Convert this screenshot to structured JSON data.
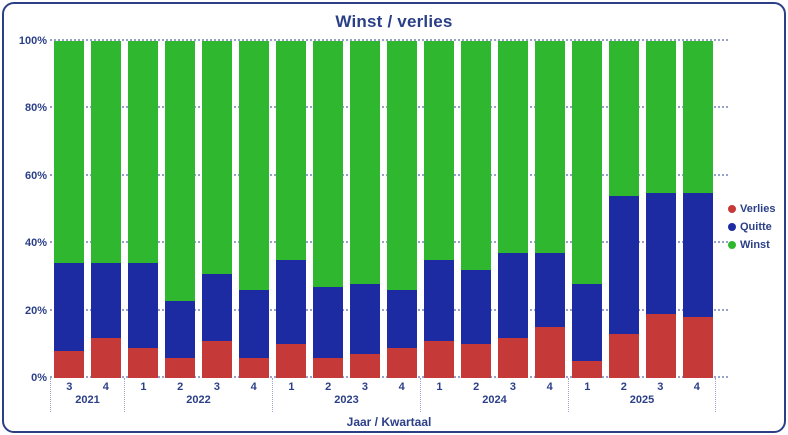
{
  "chart_data": {
    "type": "bar",
    "variant": "100%-stacked-column",
    "title": "Winst / verlies",
    "xlabel": "Jaar / Kwartaal",
    "ylabel": "",
    "ylim": [
      0,
      100
    ],
    "y_ticks": [
      {
        "value": 0,
        "label": "0%"
      },
      {
        "value": 20,
        "label": "20%"
      },
      {
        "value": 40,
        "label": "40%"
      },
      {
        "value": 60,
        "label": "60%"
      },
      {
        "value": 80,
        "label": "80%"
      },
      {
        "value": 100,
        "label": "100%"
      }
    ],
    "grid": "horizontal-dotted",
    "legend_position": "right",
    "groups": [
      {
        "year": "2021",
        "quarters": [
          "3",
          "4"
        ]
      },
      {
        "year": "2022",
        "quarters": [
          "1",
          "2",
          "3",
          "4"
        ]
      },
      {
        "year": "2023",
        "quarters": [
          "1",
          "2",
          "3",
          "4"
        ]
      },
      {
        "year": "2024",
        "quarters": [
          "1",
          "2",
          "3",
          "4"
        ]
      },
      {
        "year": "2025",
        "quarters": [
          "1",
          "2",
          "3",
          "4"
        ]
      }
    ],
    "series": [
      {
        "name": "Verlies",
        "color": "#c53a38",
        "values": [
          8,
          12,
          9,
          6,
          11,
          6,
          10,
          6,
          7,
          9,
          11,
          10,
          12,
          15,
          5,
          13,
          19,
          18
        ]
      },
      {
        "name": "Quitte",
        "color": "#1d2ba3",
        "values": [
          26,
          22,
          25,
          17,
          20,
          20,
          25,
          21,
          21,
          17,
          24,
          22,
          25,
          22,
          23,
          41,
          36,
          37
        ]
      },
      {
        "name": "Winst",
        "color": "#2fb72f",
        "values": [
          66,
          66,
          66,
          77,
          69,
          74,
          65,
          73,
          72,
          74,
          65,
          68,
          63,
          63,
          72,
          46,
          45,
          45
        ]
      }
    ]
  },
  "colors": {
    "text": "#2b3f87",
    "border": "#2b3f87",
    "grid": "#97a1cc",
    "background": "#ffffff"
  }
}
